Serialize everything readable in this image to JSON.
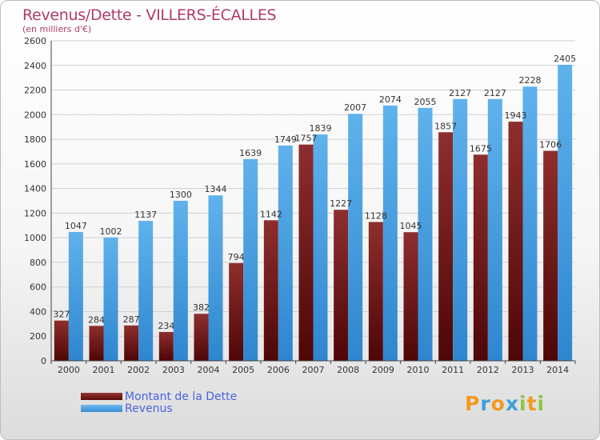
{
  "chart_data": {
    "type": "bar",
    "title": "Revenus/Dette - VILLERS-ÉCALLES",
    "subtitle": "(en milliers d'€)",
    "categories": [
      "2000",
      "2001",
      "2002",
      "2003",
      "2004",
      "2005",
      "2006",
      "2007",
      "2008",
      "2009",
      "2010",
      "2011",
      "2012",
      "2013",
      "2014"
    ],
    "series": [
      {
        "name": "Montant de la Dette",
        "color": "#7a1c1c",
        "values": [
          327,
          284,
          287,
          234,
          382,
          794,
          1142,
          1757,
          1227,
          1128,
          1045,
          1857,
          1675,
          1943,
          1706
        ],
        "labels": [
          "327",
          "284",
          "287",
          "234",
          "382",
          "794",
          "1142",
          "1757",
          "1227",
          "1128",
          "1045",
          "1857",
          "1675",
          "1943",
          "1706"
        ]
      },
      {
        "name": "Revenus",
        "color": "#4aa3e6",
        "values": [
          1047,
          1002,
          1137,
          1300,
          1344,
          1639,
          1749,
          1839,
          2007,
          2074,
          2055,
          2127,
          2127,
          2228,
          2405
        ],
        "labels": [
          "1047",
          "1002",
          "1137",
          "1300",
          "1344",
          "1639",
          "1749",
          "1839",
          "2007",
          "2074",
          "2055",
          "2127",
          "2127",
          "2228",
          "2405"
        ]
      }
    ],
    "ylim": [
      0,
      2600
    ],
    "yticks": [
      "0",
      "200",
      "400",
      "600",
      "800",
      "1000",
      "1200",
      "1400",
      "1600",
      "1800",
      "2000",
      "2200",
      "2400",
      "2600"
    ],
    "grid": true,
    "legend": "bottom-left"
  },
  "legend": {
    "dette": "Montant de la Dette",
    "revenus": "Revenus"
  },
  "logo": {
    "letters": [
      "P",
      "r",
      "o",
      "x",
      "i",
      "t",
      "i"
    ],
    "colors": [
      "#f29a1f",
      "#3fa0d8",
      "#f29a1f",
      "#3fa0d8",
      "#8cc63f",
      "#f29a1f",
      "#8cc63f"
    ]
  }
}
